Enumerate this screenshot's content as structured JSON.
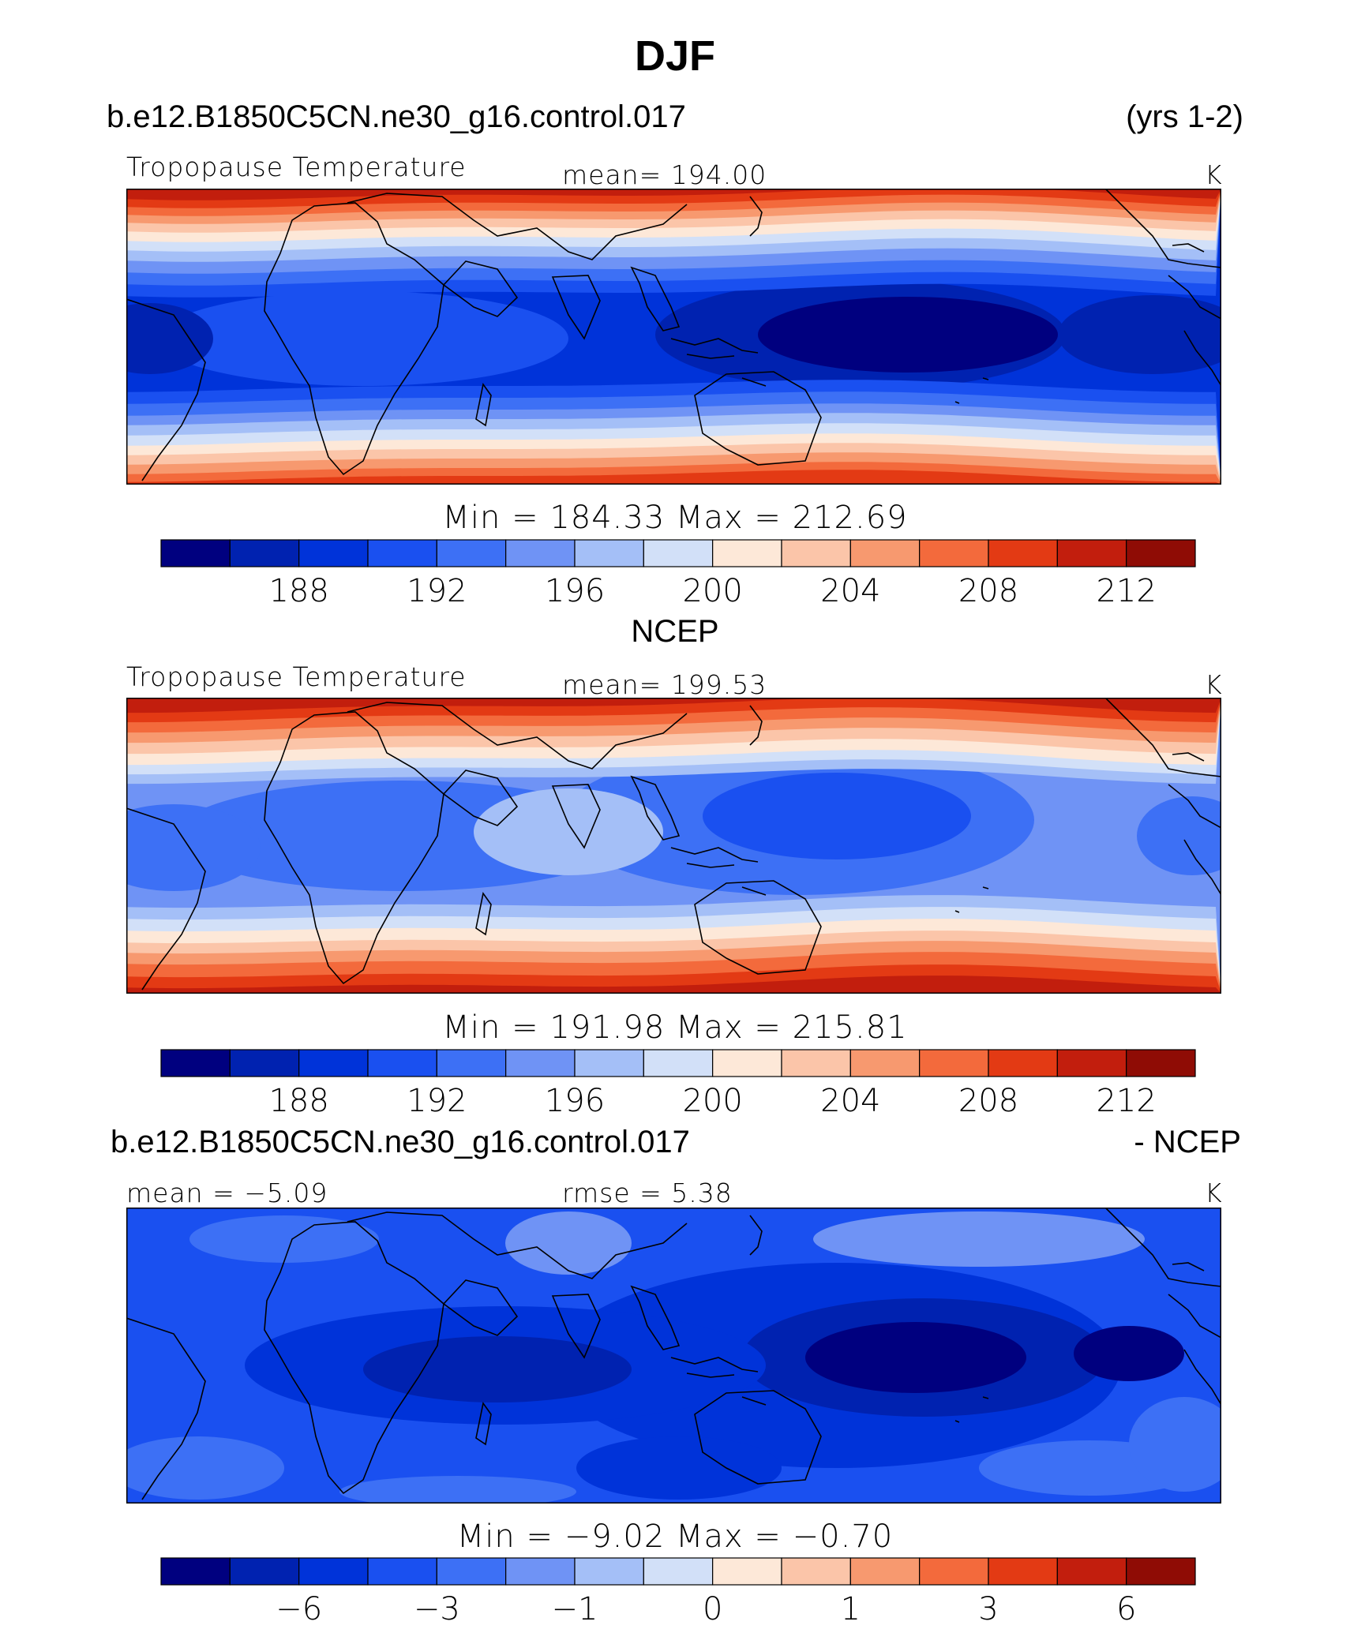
{
  "page_title": "DJF",
  "palette": [
    "#00007f",
    "#0022b0",
    "#0033d9",
    "#1a50f0",
    "#3d70f5",
    "#6f93f5",
    "#a4bff7",
    "#d2e0f8",
    "#fde8d8",
    "#fbc5a9",
    "#f7996f",
    "#f36a3c",
    "#e33a14",
    "#c21e0d",
    "#8f0c05"
  ],
  "chart_data": [
    {
      "type": "contour_map",
      "case_title": "b.e12.B1850C5CN.ne30_g16.control.017",
      "years": "(yrs 1-2)",
      "variable": "Tropopause Temperature",
      "mean_text": "mean= 194.00",
      "units": "K",
      "min": 184.33,
      "max": 212.69,
      "minmax_text": "Min  =  184.33  Max  =  212.69",
      "levels": [
        186,
        188,
        190,
        192,
        194,
        196,
        198,
        200,
        202,
        204,
        206,
        208,
        210,
        212
      ],
      "tick_labels": [
        "188",
        "192",
        "196",
        "200",
        "204",
        "208",
        "212"
      ]
    },
    {
      "type": "contour_map",
      "case_title": "NCEP",
      "variable": "Tropopause Temperature",
      "mean_text": "mean= 199.53",
      "units": "K",
      "min": 191.98,
      "max": 215.81,
      "minmax_text": "Min  =  191.98  Max  =  215.81",
      "levels": [
        186,
        188,
        190,
        192,
        194,
        196,
        198,
        200,
        202,
        204,
        206,
        208,
        210,
        212
      ],
      "tick_labels": [
        "188",
        "192",
        "196",
        "200",
        "204",
        "208",
        "212"
      ]
    },
    {
      "type": "contour_map",
      "case_title": "b.e12.B1850C5CN.ne30_g16.control.017",
      "diff_suffix": "- NCEP",
      "mean_text": "mean =   −5.09",
      "rmse_text": "rmse  =     5.38",
      "units": "K",
      "min": -9.02,
      "max": -0.7,
      "minmax_text": "Min  =    −9.02  Max  =    −0.70",
      "levels": [
        -8,
        -6,
        -4,
        -3,
        -2,
        -1,
        -0.5,
        0,
        0.5,
        1,
        2,
        3,
        4,
        6
      ],
      "tick_labels": [
        "−6",
        "−3",
        "−1",
        "0",
        "1",
        "3",
        "6"
      ]
    }
  ]
}
